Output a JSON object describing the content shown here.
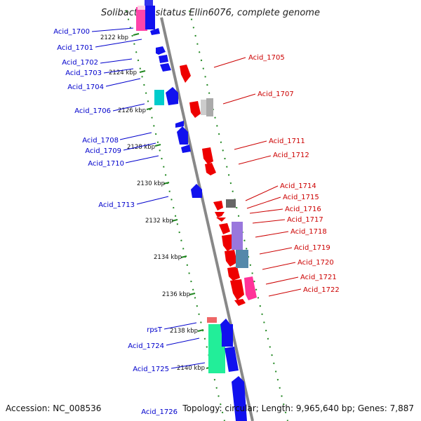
{
  "title": "Solibacter usitatus Ellin6076, complete genome",
  "accession": "Accession: NC_008536",
  "topology": "Topology: circular; Length: 9,965,640 bp; Genes: 7,887",
  "colors": {
    "forward": "#0000ee",
    "reverse": "#ee0000",
    "label_forward": "#0000cc",
    "label_reverse": "#cc0000",
    "backbone": "#888888",
    "ticks": "#228822"
  },
  "kbp_ticks": [
    "2122 kbp",
    "2124 kbp",
    "2126 kbp",
    "2128 kbp",
    "2130 kbp",
    "2132 kbp",
    "2134 kbp",
    "2136 kbp",
    "2138 kbp",
    "2140 kbp"
  ],
  "left_labels": [
    "Acid_1700",
    "Acid_1701",
    "Acid_1702",
    "Acid_1703",
    "Acid_1704",
    "Acid_1706",
    "Acid_1708",
    "Acid_1709",
    "Acid_1710",
    "Acid_1713",
    "rpsT",
    "Acid_1724",
    "Acid_1725",
    "Acid_1726"
  ],
  "right_labels": [
    "Acid_1705",
    "Acid_1707",
    "Acid_1711",
    "Acid_1712",
    "Acid_1714",
    "Acid_1715",
    "Acid_1716",
    "Acid_1717",
    "Acid_1718",
    "Acid_1719",
    "Acid_1720",
    "Acid_1721",
    "Acid_1722"
  ]
}
